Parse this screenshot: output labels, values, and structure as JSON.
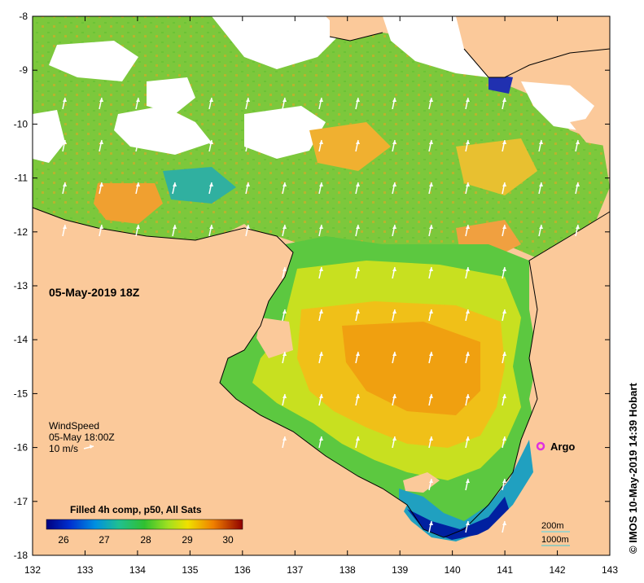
{
  "map": {
    "date_label": "05-May-2019 18Z",
    "x_axis": {
      "ticks": [
        "132",
        "133",
        "134",
        "135",
        "136",
        "137",
        "138",
        "139",
        "140",
        "141",
        "142",
        "143"
      ]
    },
    "y_axis": {
      "ticks": [
        "-8",
        "-9",
        "-10",
        "-11",
        "-12",
        "-13",
        "-14",
        "-15",
        "-16",
        "-17",
        "-18"
      ]
    },
    "wind_legend": {
      "title": "WindSpeed",
      "time": "05-May 18:00Z",
      "scale": "10 m/s"
    },
    "colorbar": {
      "title": "Filled 4h comp, p50, All Sats",
      "ticks": [
        "26",
        "27",
        "28",
        "29",
        "30"
      ]
    },
    "argo_label": "Argo",
    "contours": {
      "shallow": "200m",
      "deep": "1000m"
    },
    "credit": "© IMOS 10-May-2019 14:39 Hobart"
  },
  "colors": {
    "land": "#fbc99a",
    "no_data": "#ffffff",
    "argo_marker": "#e030e0",
    "contour_200m": "#4cd8f0",
    "contour_1000m": "#3cc8d8"
  }
}
